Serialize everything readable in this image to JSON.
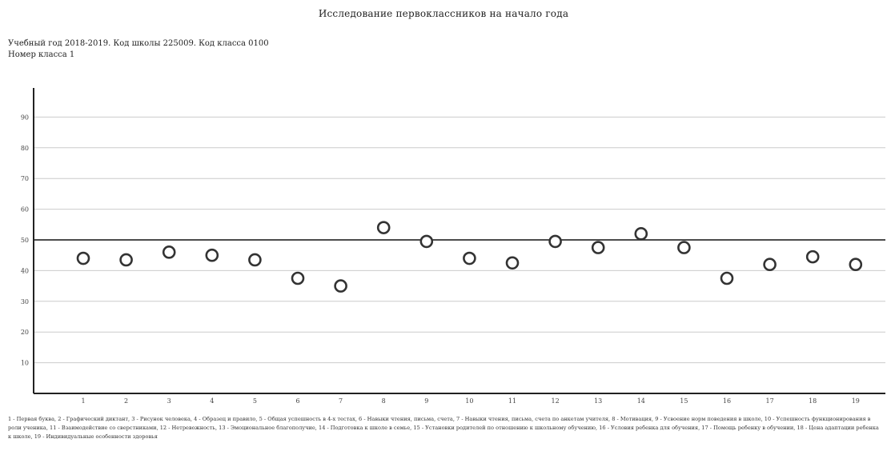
{
  "header": {
    "title": "Исследование первоклассников на начало года",
    "line1": "Учебный год 2018-2019. Код школы 225009. Код класса 0100",
    "line2": "Номер класса 1"
  },
  "footnote": "1 - Первая буква, 2 - Графический диктант, 3 - Рисунок человека, 4 - Образец и правило, 5 - Общая успешность в 4-х тестах, 6 - Навыки чтения, письма, счета, 7 - Навыки чтения, письма, счета по анкетам учителя, 8 - Мотивация, 9 - Усвоение норм поведения в школе, 10 - Успешность функционирования в роли ученика, 11 - Взаимодействие со сверстниками, 12 - Нетревожность, 13 - Эмоциональное благополучие, 14 - Подготовка к школе в семье, 15 - Установки родителей по отношению к школьному обучению, 16 - Условия ребенка для обучения, 17 - Помощь ребенку в обучении, 18 - Цена адаптации ребенка к школе, 19 - Индивидуальные особенности здоровья",
  "colors": {
    "axis": "#222222",
    "grid": "#cccccc",
    "reference": "#333333",
    "marker": "#333333"
  },
  "chart_data": {
    "type": "scatter",
    "title": "",
    "xlabel": "",
    "ylabel": "",
    "ylim": [
      0,
      100
    ],
    "yticks": [
      10,
      20,
      30,
      40,
      50,
      60,
      70,
      80,
      90
    ],
    "grid": true,
    "reference_line": 50,
    "categories": [
      "1",
      "2",
      "3",
      "4",
      "5",
      "6",
      "7",
      "8",
      "9",
      "10",
      "11",
      "12",
      "13",
      "14",
      "15",
      "16",
      "17",
      "18",
      "19"
    ],
    "values": [
      44,
      43.5,
      46,
      45,
      43.5,
      37.5,
      35,
      54,
      49.5,
      44,
      42.5,
      49.5,
      47.5,
      52,
      47.5,
      37.5,
      42,
      44.5,
      42
    ]
  }
}
